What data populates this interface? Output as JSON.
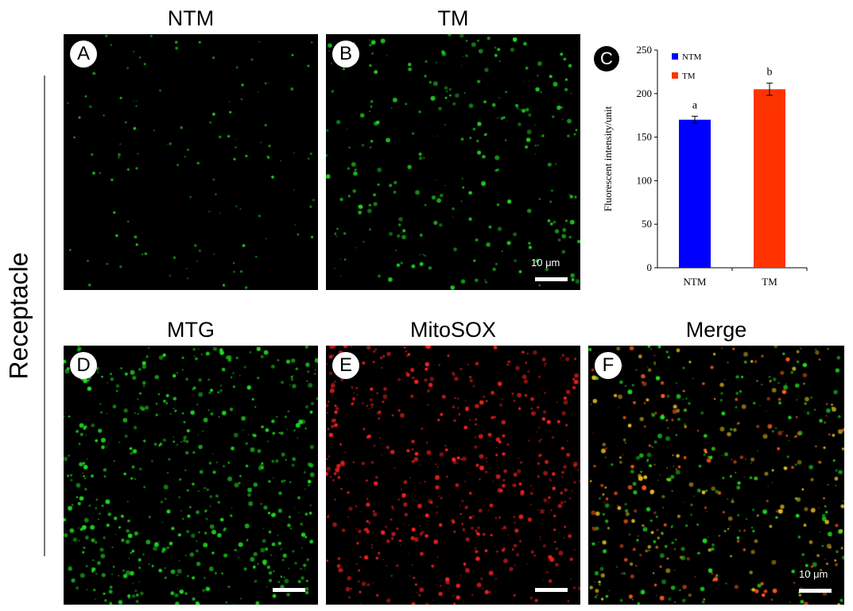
{
  "figure": {
    "row_label": "Receptacle",
    "top_titles": [
      "NTM",
      "TM"
    ],
    "bottom_titles": [
      "MTG",
      "MitoSOX",
      "Merge"
    ],
    "panels": [
      {
        "letter": "A",
        "channel": "green",
        "density": "low",
        "scalebar_text": ""
      },
      {
        "letter": "B",
        "channel": "green",
        "density": "medium",
        "scalebar_text": "10 μm"
      },
      {
        "letter": "D",
        "channel": "green",
        "density": "high",
        "scalebar_text": ""
      },
      {
        "letter": "E",
        "channel": "red",
        "density": "high",
        "scalebar_text": ""
      },
      {
        "letter": "F",
        "channel": "merge",
        "density": "high",
        "scalebar_text": "10 μm"
      }
    ],
    "chart_letter": "C",
    "colors": {
      "green": "#22dd22",
      "red": "#ff2222",
      "ntm_bar": "#0000ff",
      "tm_bar": "#ff3300"
    }
  },
  "chart_data": {
    "type": "bar",
    "categories": [
      "NTM",
      "TM"
    ],
    "values": [
      170,
      205
    ],
    "errors": [
      4,
      7
    ],
    "significance": [
      "a",
      "b"
    ],
    "colors": [
      "#0000ff",
      "#ff3300"
    ],
    "legend": [
      "NTM",
      "TM"
    ],
    "legend_position": "top-left",
    "ylabel": "Fluorescent intensity/unit",
    "xlabel": "",
    "ylim": [
      0,
      250
    ],
    "yticks": [
      0,
      50,
      100,
      150,
      200,
      250
    ],
    "grid": false
  }
}
